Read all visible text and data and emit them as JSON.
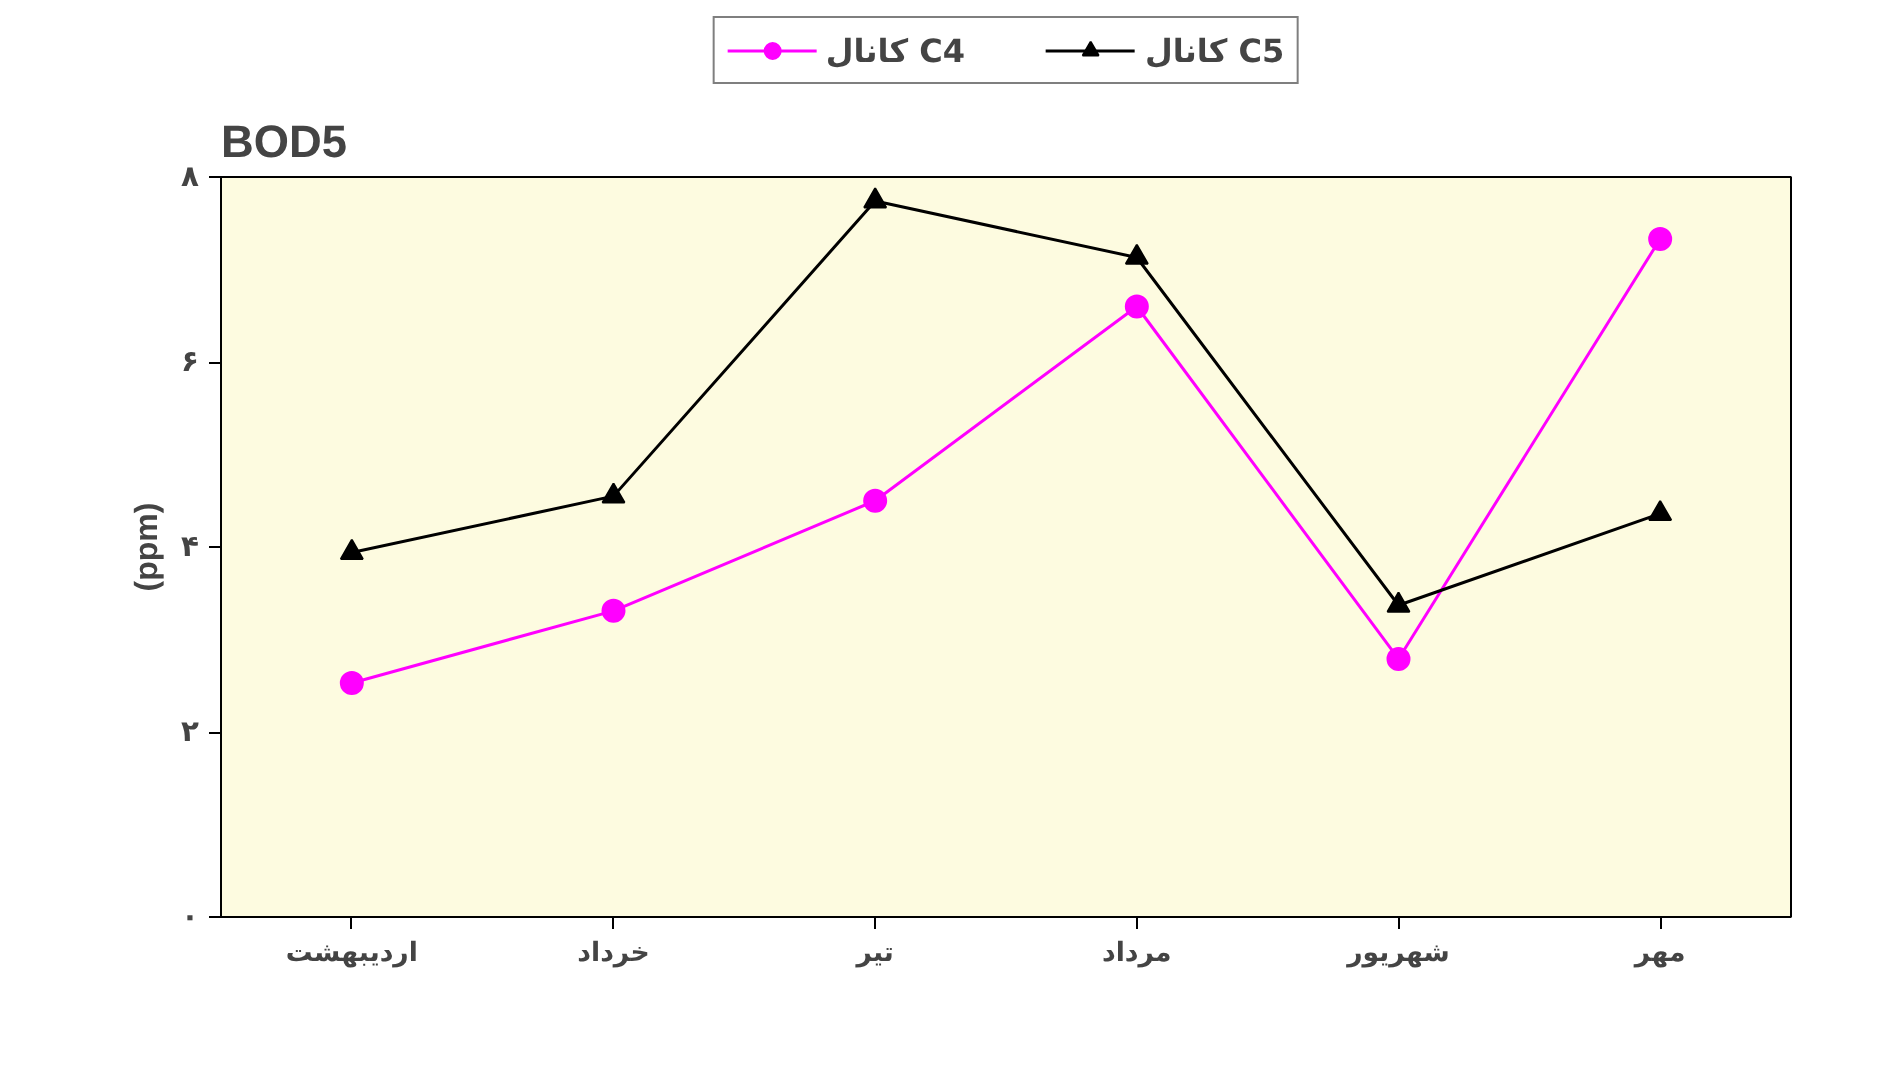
{
  "chart_data": {
    "type": "line",
    "title": "BOD5",
    "ylabel": "(ppm)",
    "categories": [
      "اردیبهشت",
      "خرداد",
      "تیر",
      "مرداد",
      "شهریور",
      "مهر"
    ],
    "series": [
      {
        "name": "کانال C4",
        "color": "#ff00ff",
        "marker": "circle",
        "values": [
          2.53,
          3.31,
          4.5,
          6.6,
          2.79,
          7.33
        ]
      },
      {
        "name": "کانال C5",
        "color": "#000000",
        "marker": "triangle",
        "values": [
          3.94,
          4.55,
          7.74,
          7.13,
          3.37,
          4.36
        ]
      }
    ],
    "ylim": [
      0,
      8
    ],
    "yticks": [
      {
        "value": 0,
        "label": "۰"
      },
      {
        "value": 2,
        "label": "۲"
      },
      {
        "value": 4,
        "label": "۴"
      },
      {
        "value": 6,
        "label": "۶"
      },
      {
        "value": 8,
        "label": "۸"
      }
    ],
    "grid": false,
    "legend": "top",
    "line_style": "solid"
  }
}
